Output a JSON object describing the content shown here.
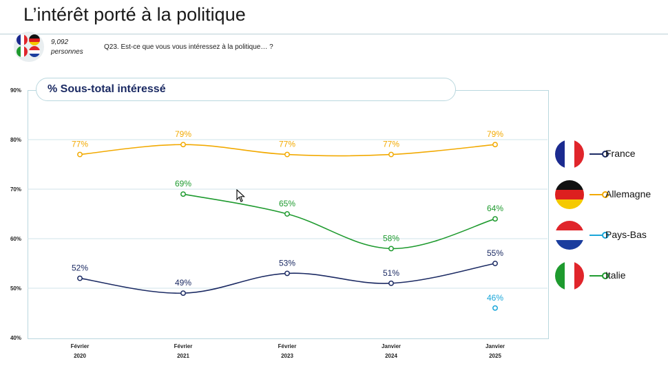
{
  "header": {
    "title": "L’intérêt porté à la politique",
    "respondents_count": "9,092",
    "respondents_label": "personnes",
    "question": "Q23. Est-ce que vous vous intéressez à la politique… ?"
  },
  "chart_data": {
    "type": "line",
    "title": "% Sous-total intéressé",
    "categories": [
      {
        "month": "Février",
        "year": "2020"
      },
      {
        "month": "Février",
        "year": "2021"
      },
      {
        "month": "Février",
        "year": "2023"
      },
      {
        "month": "Janvier",
        "year": "2024"
      },
      {
        "month": "Janvier",
        "year": "2025"
      }
    ],
    "ylim": [
      40,
      90
    ],
    "yticks": [
      "90%",
      "80%",
      "70%",
      "60%",
      "50%",
      "40%"
    ],
    "ytick_values": [
      90,
      80,
      70,
      60,
      50,
      40
    ],
    "series": [
      {
        "name": "France",
        "color": "#1b2a63",
        "flag": "france",
        "values": [
          52,
          49,
          53,
          51,
          55
        ],
        "labels": [
          "52%",
          "49%",
          "53%",
          "51%",
          "55%"
        ]
      },
      {
        "name": "Allemagne",
        "color": "#f2a900",
        "flag": "germany",
        "values": [
          77,
          79,
          77,
          77,
          79
        ],
        "labels": [
          "77%",
          "79%",
          "77%",
          "77%",
          "79%"
        ]
      },
      {
        "name": "Pays-Bas",
        "color": "#19a6d9",
        "flag": "netherlands",
        "values": [
          null,
          null,
          null,
          null,
          46
        ],
        "labels": [
          null,
          null,
          null,
          null,
          "46%"
        ]
      },
      {
        "name": "Italie",
        "color": "#1e9a2e",
        "flag": "italy",
        "values": [
          null,
          69,
          65,
          58,
          64
        ],
        "labels": [
          null,
          "69%",
          "65%",
          "58%",
          "64%"
        ]
      }
    ],
    "grid": true,
    "legend": "right"
  }
}
